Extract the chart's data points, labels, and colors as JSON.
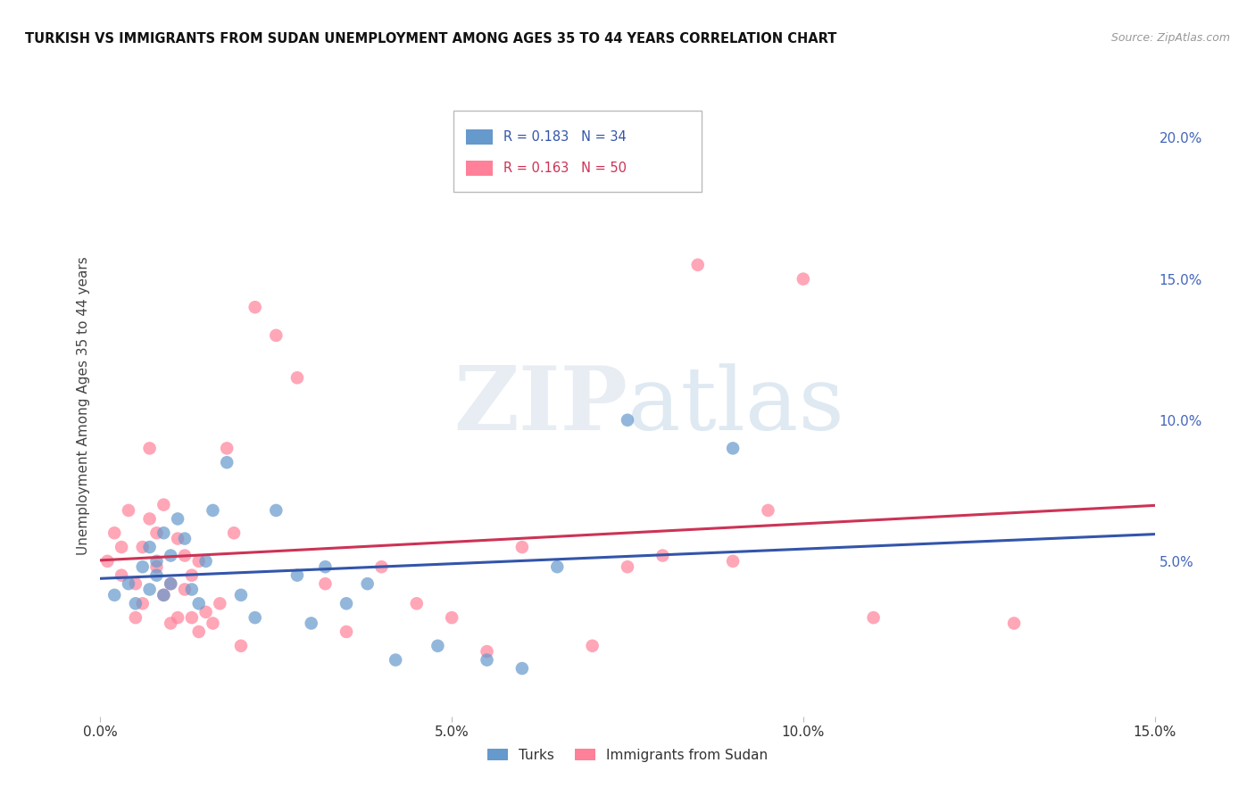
{
  "title": "TURKISH VS IMMIGRANTS FROM SUDAN UNEMPLOYMENT AMONG AGES 35 TO 44 YEARS CORRELATION CHART",
  "source": "Source: ZipAtlas.com",
  "ylabel": "Unemployment Among Ages 35 to 44 years",
  "xlabel_ticks": [
    "0.0%",
    "5.0%",
    "10.0%",
    "15.0%"
  ],
  "xlabel_vals": [
    0.0,
    0.05,
    0.1,
    0.15
  ],
  "right_ytick_vals": [
    0.05,
    0.1,
    0.15,
    0.2
  ],
  "right_ytick_labels": [
    "5.0%",
    "10.0%",
    "15.0%",
    "20.0%"
  ],
  "xlim": [
    0.0,
    0.15
  ],
  "ylim": [
    -0.005,
    0.215
  ],
  "legend_turks": "Turks",
  "legend_sudan": "Immigrants from Sudan",
  "R_turks": 0.183,
  "N_turks": 34,
  "R_sudan": 0.163,
  "N_sudan": 50,
  "color_turks": "#6699CC",
  "color_sudan": "#FF8099",
  "color_turks_line": "#3355AA",
  "color_sudan_line": "#CC3355",
  "background_color": "#ffffff",
  "grid_color": "#cccccc",
  "turks_x": [
    0.002,
    0.004,
    0.005,
    0.006,
    0.007,
    0.007,
    0.008,
    0.008,
    0.009,
    0.009,
    0.01,
    0.01,
    0.011,
    0.012,
    0.013,
    0.014,
    0.015,
    0.016,
    0.018,
    0.02,
    0.022,
    0.025,
    0.028,
    0.03,
    0.032,
    0.035,
    0.038,
    0.042,
    0.048,
    0.055,
    0.06,
    0.065,
    0.075,
    0.09
  ],
  "turks_y": [
    0.038,
    0.042,
    0.035,
    0.048,
    0.04,
    0.055,
    0.045,
    0.05,
    0.038,
    0.06,
    0.052,
    0.042,
    0.065,
    0.058,
    0.04,
    0.035,
    0.05,
    0.068,
    0.085,
    0.038,
    0.03,
    0.068,
    0.045,
    0.028,
    0.048,
    0.035,
    0.042,
    0.015,
    0.02,
    0.015,
    0.012,
    0.048,
    0.1,
    0.09
  ],
  "sudan_x": [
    0.001,
    0.002,
    0.003,
    0.003,
    0.004,
    0.005,
    0.005,
    0.006,
    0.006,
    0.007,
    0.007,
    0.008,
    0.008,
    0.009,
    0.009,
    0.01,
    0.01,
    0.011,
    0.011,
    0.012,
    0.012,
    0.013,
    0.013,
    0.014,
    0.014,
    0.015,
    0.016,
    0.017,
    0.018,
    0.019,
    0.02,
    0.022,
    0.025,
    0.028,
    0.032,
    0.035,
    0.04,
    0.045,
    0.05,
    0.055,
    0.06,
    0.07,
    0.075,
    0.08,
    0.085,
    0.09,
    0.095,
    0.1,
    0.11,
    0.13
  ],
  "sudan_y": [
    0.05,
    0.06,
    0.055,
    0.045,
    0.068,
    0.042,
    0.03,
    0.055,
    0.035,
    0.065,
    0.09,
    0.06,
    0.048,
    0.038,
    0.07,
    0.042,
    0.028,
    0.058,
    0.03,
    0.052,
    0.04,
    0.045,
    0.03,
    0.05,
    0.025,
    0.032,
    0.028,
    0.035,
    0.09,
    0.06,
    0.02,
    0.14,
    0.13,
    0.115,
    0.042,
    0.025,
    0.048,
    0.035,
    0.03,
    0.018,
    0.055,
    0.02,
    0.048,
    0.052,
    0.155,
    0.05,
    0.068,
    0.15,
    0.03,
    0.028
  ]
}
